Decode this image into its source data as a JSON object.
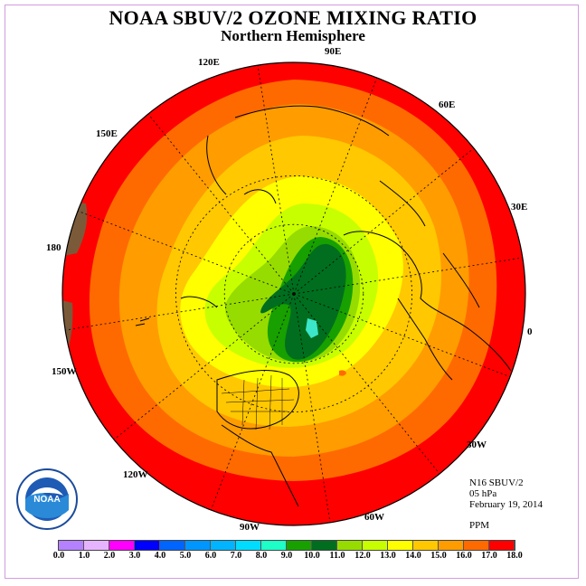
{
  "header": {
    "title": "NOAA SBUV/2 OZONE MIXING RATIO",
    "subtitle": "Northern Hemisphere"
  },
  "map": {
    "projection": "north polar stereographic",
    "longitude_labels": {
      "lon_90E": "90E",
      "lon_120E": "120E",
      "lon_60E": "60E",
      "lon_150E": "150E",
      "lon_30E": "30E",
      "lon_180": "180",
      "lon_0": "0",
      "lon_150W": "150W",
      "lon_30W": "30W",
      "lon_120W": "120W",
      "lon_60W": "60W",
      "lon_90W": "90W"
    },
    "colors": {
      "outer_band": "#ff0000",
      "orange_dark": "#ff6a00",
      "orange": "#ff9c00",
      "gold": "#ffc800",
      "yellow": "#ffff00",
      "yellow_green": "#c8ff00",
      "light_green": "#96dc00",
      "green": "#17a000",
      "dark_green": "#006e1e",
      "cyan": "#3ce6c8",
      "brown": "#7b5a3a"
    }
  },
  "info": {
    "instrument": "N16 SBUV/2",
    "level": "05 hPa",
    "date": "February 19, 2014",
    "units": "PPM"
  },
  "logo": {
    "text": "NOAA"
  },
  "legend": {
    "ticks": [
      "0.0",
      "1.0",
      "2.0",
      "3.0",
      "4.0",
      "5.0",
      "6.0",
      "7.0",
      "8.0",
      "9.0",
      "10.0",
      "11.0",
      "12.0",
      "13.0",
      "14.0",
      "15.0",
      "16.0",
      "17.0",
      "18.0"
    ],
    "colors": [
      "#b482ff",
      "#e6b4ff",
      "#ff00ff",
      "#0000ff",
      "#0064ff",
      "#0096ff",
      "#00b4ff",
      "#00dcff",
      "#1effc8",
      "#17a000",
      "#006e1e",
      "#96dc00",
      "#c8ff00",
      "#ffff00",
      "#ffc800",
      "#ff9c00",
      "#ff6a00",
      "#ff0000"
    ]
  }
}
